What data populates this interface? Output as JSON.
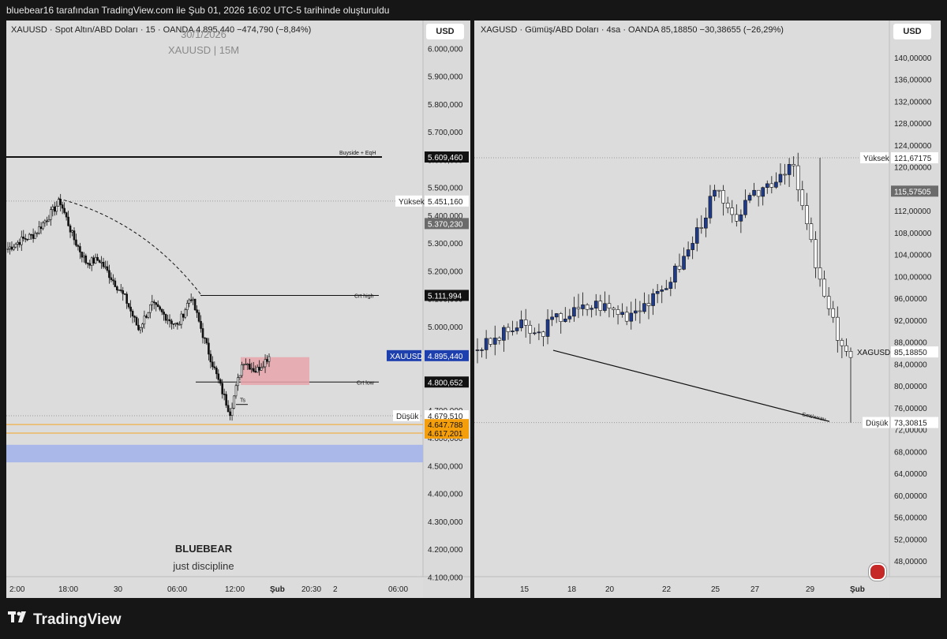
{
  "header": {
    "caption": "bluebear16 tarafından TradingView.com ile Şub 01, 2026 16:02 UTC-5 tarihinde oluşturuldu"
  },
  "left": {
    "symbol_line": "XAUUSD · Spot Altın/ABD Doları · 15 · OANDA  4.895,440  −474,790 (−8,84%)",
    "currency": "USD",
    "watermark_date": "30/1/2026",
    "watermark_title": "XAUUSD | 15M",
    "brand_title": "BLUEBEAR",
    "brand_subtitle": "just discipline",
    "price_ticks": [
      "6.000,000",
      "5.900,000",
      "5.800,000",
      "5.700,000",
      "5.600,000",
      "5.500,000",
      "5.400,000",
      "5.300,000",
      "5.200,000",
      "5.100,000",
      "5.000,000",
      "4.900,000",
      "4.800,000",
      "4.700,000",
      "4.600,000",
      "4.500,000",
      "4.400,000",
      "4.300,000",
      "4.200,000",
      "4.100,000"
    ],
    "time_ticks": [
      "2:00",
      "18:00",
      "30",
      "06:00",
      "12:00",
      "Şub",
      "20:30",
      "2",
      "06:00"
    ],
    "labels": {
      "buyside": "Buyside + EqH",
      "crt_high": "Crt high",
      "crt_low": "Crt low",
      "ts": "Ts",
      "high_tag": "Yüksek",
      "low_tag": "Düşük",
      "symbol_tag": "XAUUSD"
    },
    "price_tags": {
      "buyside": "5.609,460",
      "high": "5.451,160",
      "gray": "5.370,230",
      "crt_high": "5.111,994",
      "current": "4.895,440",
      "crt_low": "4.800,652",
      "low": "4.679,510",
      "orange1": "4.647,788",
      "orange2": "4.617,201"
    },
    "chart_data": {
      "type": "candlestick",
      "price_range": [
        4050,
        6100
      ],
      "candle_count": 135,
      "series_min": 4679.51,
      "series_max": 5451.16,
      "last_close": 4895.44
    }
  },
  "right": {
    "symbol_line": "XAGUSD · Gümüş/ABD Doları · 4sa · OANDA  85,18850  −30,38655 (−26,29%)",
    "currency": "USD",
    "price_ticks": [
      "140,00000",
      "136,00000",
      "132,00000",
      "128,00000",
      "124,00000",
      "120,00000",
      "116,00000",
      "112,00000",
      "108,00000",
      "104,00000",
      "100,00000",
      "96,00000",
      "92,00000",
      "88,00000",
      "84,00000",
      "80,00000",
      "76,00000",
      "72,00000",
      "68,00000",
      "64,00000",
      "60,00000",
      "56,00000",
      "52,00000",
      "48,00000"
    ],
    "time_ticks": [
      "15",
      "18",
      "20",
      "22",
      "25",
      "27",
      "29",
      "Şub"
    ],
    "labels": {
      "high_tag": "Yüksek",
      "low_tag": "Düşük",
      "symbol_tag": "XAGUSD",
      "smt": "Smt/wxau"
    },
    "price_tags": {
      "high": "121,67175",
      "gray": "115,57505",
      "current": "85,18850",
      "low": "73,30815"
    },
    "chart_data": {
      "type": "candlestick",
      "price_range": [
        45,
        143
      ],
      "candle_count": 86,
      "series_min": 73.30815,
      "series_max": 121.67175,
      "last_close": 85.1885
    }
  },
  "footer": {
    "brand": "TradingView"
  }
}
